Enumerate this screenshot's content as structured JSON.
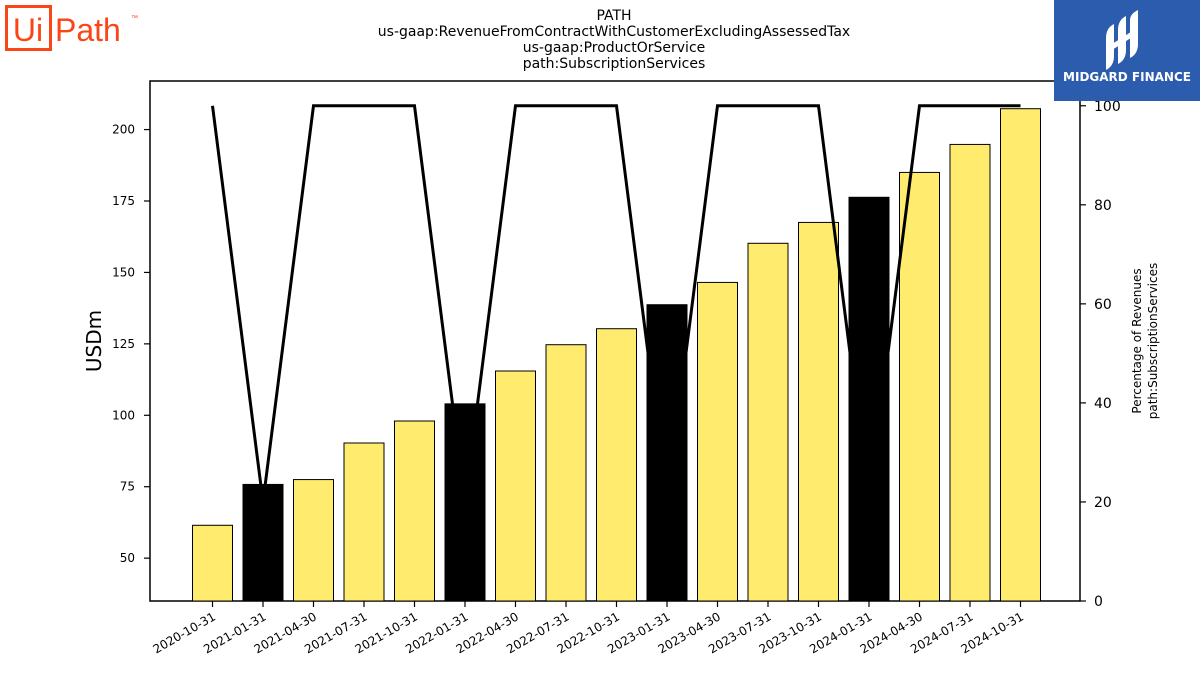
{
  "header": {
    "title_lines": [
      "PATH",
      "us-gaap:RevenueFromContractWithCustomerExcludingAssessedTax",
      "us-gaap:ProductOrService",
      "path:SubscriptionServices"
    ]
  },
  "logos": {
    "left": {
      "text_ui": "Ui",
      "text_path": "Path",
      "tm": "™",
      "color": "#fa4616"
    },
    "right": {
      "text": "MIDGARD FINANCE",
      "bg_color": "#2b5cad"
    }
  },
  "chart_data": {
    "type": "bar",
    "categories": [
      "2020-10-31",
      "2021-01-31",
      "2021-04-30",
      "2021-07-31",
      "2021-10-31",
      "2022-01-31",
      "2022-04-30",
      "2022-07-31",
      "2022-10-31",
      "2023-01-31",
      "2023-04-30",
      "2023-07-31",
      "2023-10-31",
      "2024-01-31",
      "2024-04-30",
      "2024-07-31",
      "2024-10-31"
    ],
    "values": [
      61.5,
      75.8,
      77.5,
      90.3,
      98.0,
      104.0,
      115.5,
      124.7,
      130.3,
      138.7,
      146.5,
      160.2,
      167.5,
      176.3,
      185.0,
      194.8,
      207.3
    ],
    "bar_highlight": [
      false,
      true,
      false,
      false,
      false,
      true,
      false,
      false,
      false,
      true,
      false,
      false,
      false,
      true,
      false,
      false,
      false
    ],
    "colors": {
      "bar_default": "#ffec6e",
      "bar_highlight": "#000000",
      "line": "#000000"
    },
    "ylabel": "USDm",
    "ylim": [
      35,
      217
    ],
    "yticks": [
      50,
      75,
      100,
      125,
      150,
      175,
      200
    ],
    "secondary_axis": {
      "label_lines": [
        "Percentage of Revenues",
        "path:SubscriptionServices"
      ],
      "ylim": [
        0,
        105
      ],
      "yticks": [
        0,
        20,
        40,
        60,
        80,
        100
      ]
    },
    "series": [
      {
        "axis": "primary",
        "type": "bar",
        "values": [
          61.5,
          75.8,
          77.5,
          90.3,
          98.0,
          104.0,
          115.5,
          124.7,
          130.3,
          138.7,
          146.5,
          160.2,
          167.5,
          176.3,
          185.0,
          194.8,
          207.3
        ]
      },
      {
        "axis": "secondary",
        "type": "line",
        "values": [
          100,
          20,
          100,
          100,
          100,
          20,
          100,
          100,
          100,
          20,
          100,
          100,
          100,
          20,
          100,
          100,
          100
        ]
      }
    ],
    "grid": false,
    "legend": "none"
  }
}
